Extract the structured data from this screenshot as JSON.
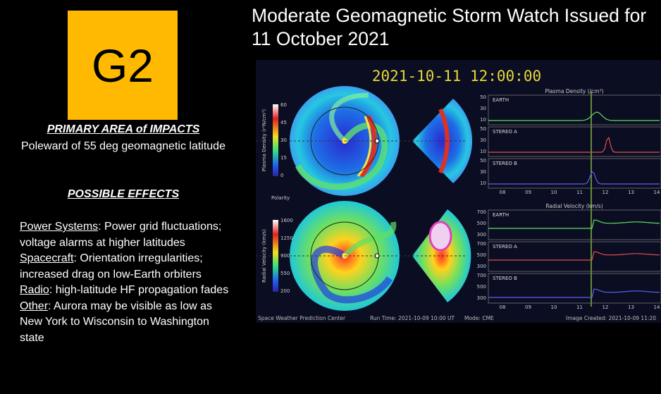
{
  "badge": "G2",
  "title": "Moderate Geomagnetic Storm Watch Issued for 11 October 2021",
  "impacts": {
    "heading": "PRIMARY AREA of IMPACTS",
    "text": "Poleward of 55 deg geomagnetic latitude"
  },
  "effects": {
    "heading": "POSSIBLE EFFECTS",
    "items": [
      {
        "label": "Power Systems",
        "text": ": Power grid fluctuations; voltage alarms at higher latitudes"
      },
      {
        "label": "Spacecraft",
        "text": ": Orientation irregularities; increased drag on low-Earth orbiters"
      },
      {
        "label": "Radio",
        "text": ": high-latitude HF propagation fades"
      },
      {
        "label": "Other",
        "text": ": Aurora may be visible as low as New York to Wisconsin to Washington state"
      }
    ]
  },
  "model": {
    "timestamp": "2021-10-11  12:00:00",
    "density_colorbar_label": "Plasma Density (r²N/cm³)",
    "density_colorbar_ticks": [
      "60",
      "45",
      "30",
      "15",
      "0"
    ],
    "velocity_colorbar_label": "Radial Velocity (km/s)",
    "velocity_colorbar_ticks": [
      "1600",
      "1250",
      "900",
      "550",
      "200"
    ],
    "polarity": "Polarity",
    "density_title": "Plasma Density (/cm³)",
    "velocity_title": "Radial Velocity (km/s)",
    "panels": [
      "EARTH",
      "STEREO A",
      "STEREO B"
    ],
    "density_ticks": [
      "50",
      "30",
      "10"
    ],
    "velocity_ticks": [
      "700",
      "500",
      "300"
    ],
    "x_ticks": [
      "08",
      "09",
      "10",
      "11",
      "12",
      "13",
      "14"
    ],
    "footer": [
      "Space Weather Prediction Center",
      "Run Time: 2021-10-09 10:00 UT",
      "Mode: CME",
      "Image Created: 2021-10-09 11:20"
    ]
  }
}
